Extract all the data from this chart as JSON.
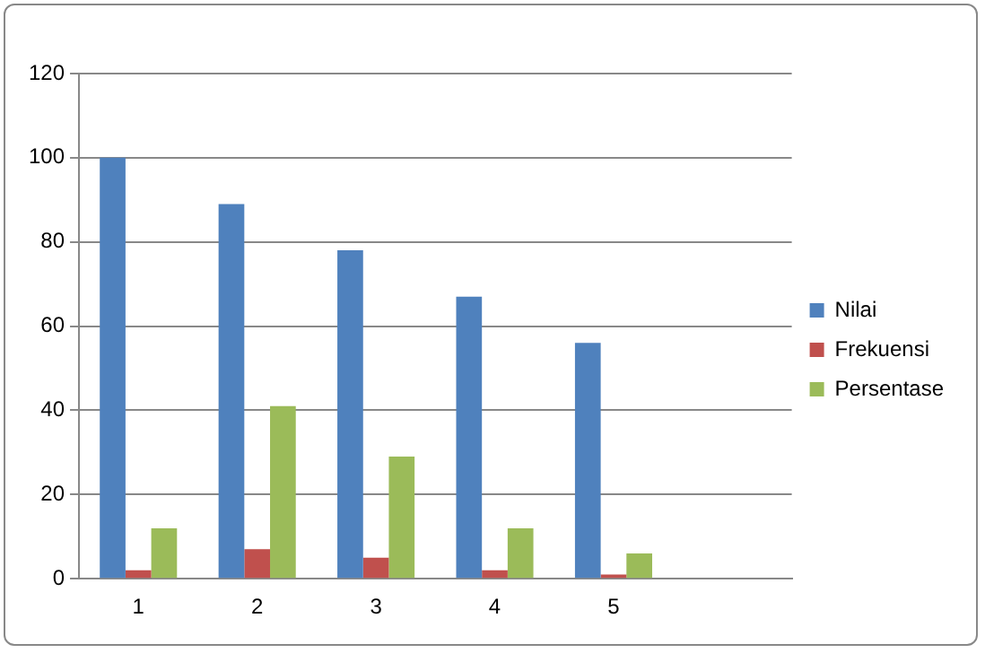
{
  "chart_data": {
    "type": "bar",
    "categories": [
      "1",
      "2",
      "3",
      "4",
      "5",
      null
    ],
    "series": [
      {
        "name": "Nilai",
        "color": "#4f81bd",
        "values": [
          100,
          89,
          78,
          67,
          56,
          null
        ]
      },
      {
        "name": "Frekuensi",
        "color": "#c0504d",
        "values": [
          2,
          7,
          5,
          2,
          1,
          null
        ]
      },
      {
        "name": "Persentase",
        "color": "#9bbb59",
        "values": [
          12,
          41,
          29,
          12,
          6,
          null
        ]
      }
    ],
    "ylim": [
      0,
      120
    ],
    "yticks": [
      0,
      20,
      40,
      60,
      80,
      100,
      120
    ],
    "grid": "y",
    "legend": "right"
  }
}
